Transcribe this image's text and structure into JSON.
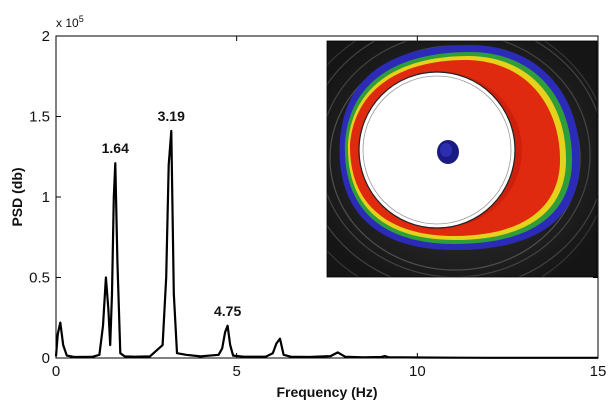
{
  "chart_data": {
    "type": "line",
    "xlabel": "Frequency (Hz)",
    "ylabel": "PSD (db)",
    "xlim": [
      0,
      15
    ],
    "ylim": [
      0,
      200000
    ],
    "y_multiplier": "x 10",
    "y_multiplier_exp": "5",
    "x_ticks": [
      "0",
      "5",
      "10",
      "15"
    ],
    "y_ticks": [
      "0",
      "0.5",
      "1",
      "1.5",
      "2"
    ],
    "grid": false,
    "series": [
      {
        "x": [
          0,
          0.05,
          0.12,
          0.2,
          0.3,
          0.5,
          1.0,
          1.2,
          1.3,
          1.38,
          1.45,
          1.5,
          1.55,
          1.6,
          1.64,
          1.7,
          1.78,
          1.9,
          2.2,
          2.6,
          2.95,
          3.05,
          3.12,
          3.19,
          3.26,
          3.35,
          3.6,
          4.0,
          4.5,
          4.6,
          4.68,
          4.75,
          4.82,
          4.9,
          5.2,
          5.8,
          6.0,
          6.1,
          6.2,
          6.3,
          6.5,
          7.0,
          7.6,
          7.8,
          8.0,
          8.5,
          9.0,
          9.1,
          9.2,
          10.0,
          11.0,
          12.0,
          13.0,
          14.0,
          15.0
        ],
        "y": [
          1000,
          15000,
          22000,
          8000,
          1500,
          600,
          700,
          2000,
          20000,
          50000,
          30000,
          8000,
          40000,
          100000,
          121000,
          60000,
          3000,
          1000,
          800,
          1000,
          8000,
          50000,
          120000,
          141000,
          40000,
          3000,
          2000,
          1000,
          2000,
          6000,
          16000,
          20000,
          8000,
          1500,
          800,
          800,
          3000,
          9000,
          12000,
          2000,
          800,
          600,
          1200,
          3500,
          800,
          400,
          600,
          1200,
          500,
          300,
          200,
          150,
          100,
          100,
          100
        ]
      }
    ],
    "annotations": [
      {
        "text": "1.64",
        "x": 1.64,
        "y": 121000
      },
      {
        "text": "3.19",
        "x": 3.19,
        "y": 141000
      },
      {
        "text": "4.75",
        "x": 4.75,
        "y": 20000
      }
    ]
  },
  "inset": {
    "description_colors": {
      "background": "#2a2a2a",
      "outer_band": "#2b2bb8",
      "green_band": "#2f9e3a",
      "yellow_band": "#e6d21a",
      "red_band": "#e02a10",
      "white_core": "#ffffff",
      "center_blob": "#1a1a80"
    }
  }
}
